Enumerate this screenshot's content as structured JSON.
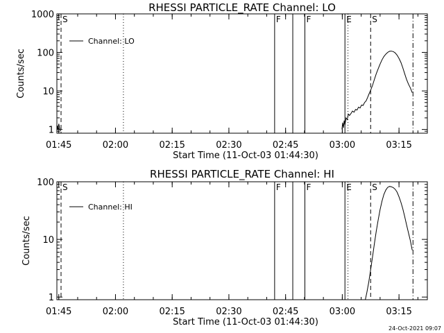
{
  "chart_data": [
    {
      "type": "line",
      "title": "RHESSI PARTICLE_RATE Channel: LO",
      "xlabel": "Start Time (11-Oct-03 01:44:30)",
      "ylabel": "Counts/sec",
      "yscale": "log",
      "xlim_min": [
        0,
        98
      ],
      "ylim": [
        0.8,
        1000
      ],
      "xticks": [
        {
          "min": 0.5,
          "label": "01:45"
        },
        {
          "min": 15.5,
          "label": "02:00"
        },
        {
          "min": 30.5,
          "label": "02:15"
        },
        {
          "min": 45.5,
          "label": "02:30"
        },
        {
          "min": 60.5,
          "label": "02:45"
        },
        {
          "min": 75.5,
          "label": "03:00"
        },
        {
          "min": 90.5,
          "label": "03:15"
        }
      ],
      "yticks": [
        {
          "value": 1,
          "label": "1"
        },
        {
          "value": 10,
          "label": "10"
        },
        {
          "value": 100,
          "label": "100"
        },
        {
          "value": 1000,
          "label": "1000"
        }
      ],
      "legend": {
        "label": "Channel: LO",
        "position": "top-left"
      },
      "flag_lines": [
        {
          "min": 1.1,
          "style": "dashed",
          "flag": "S"
        },
        {
          "min": 17.6,
          "style": "dotted",
          "flag": ""
        },
        {
          "min": 57.6,
          "style": "solid",
          "flag": "F"
        },
        {
          "min": 62.4,
          "style": "solid",
          "flag": ""
        },
        {
          "min": 65.6,
          "style": "solid",
          "flag": "F"
        },
        {
          "min": 76.2,
          "style": "solid",
          "flag": "E"
        },
        {
          "min": 77.0,
          "style": "dotted",
          "flag": ""
        },
        {
          "min": 83.0,
          "style": "dashed",
          "flag": "S"
        },
        {
          "min": 94.2,
          "style": "dashdot",
          "flag": ""
        }
      ],
      "series": [
        {
          "name": "Channel: LO",
          "x": [
            0.05,
            0.15,
            0.3,
            0.5,
            0.8,
            1.05
          ],
          "y": [
            1.0,
            1.25,
            1.0,
            1.4,
            1.0,
            0.9
          ],
          "style": "noise"
        },
        {
          "name": "Channel: LO",
          "x": [
            75.4,
            75.6,
            75.8,
            76.0,
            76.2,
            76.5,
            76.8,
            77.1,
            77.4,
            77.8,
            78.2,
            78.6,
            79.0,
            79.4,
            79.8,
            80.2,
            80.6,
            81.0,
            81.4,
            81.8,
            82.2,
            82.6,
            83.0,
            83.5,
            84.0,
            84.5,
            85.0,
            85.5,
            86.0,
            86.5,
            87.0,
            87.5,
            88.0,
            88.5,
            89.0,
            89.5,
            90.0,
            90.5,
            91.0,
            91.5,
            92.0,
            92.5,
            93.0,
            93.5,
            94.0
          ],
          "y": [
            1.0,
            1.5,
            1.1,
            1.7,
            1.3,
            2.0,
            1.8,
            2.5,
            2.3,
            2.6,
            3.0,
            2.8,
            3.3,
            3.2,
            3.8,
            3.6,
            4.3,
            4.2,
            5.0,
            5.5,
            6.8,
            8.5,
            10.5,
            14,
            20,
            28,
            38,
            50,
            64,
            78,
            90,
            100,
            107,
            108,
            105,
            97,
            85,
            70,
            55,
            40,
            28,
            20,
            15,
            12,
            9
          ]
        }
      ]
    },
    {
      "type": "line",
      "title": "RHESSI PARTICLE_RATE Channel: HI",
      "xlabel": "Start Time (11-Oct-03 01:44:30)",
      "ylabel": "Counts/sec",
      "yscale": "log",
      "xlim_min": [
        0,
        98
      ],
      "ylim": [
        0.9,
        100
      ],
      "xticks": [
        {
          "min": 0.5,
          "label": "01:45"
        },
        {
          "min": 15.5,
          "label": "02:00"
        },
        {
          "min": 30.5,
          "label": "02:15"
        },
        {
          "min": 45.5,
          "label": "02:30"
        },
        {
          "min": 60.5,
          "label": "02:45"
        },
        {
          "min": 75.5,
          "label": "03:00"
        },
        {
          "min": 90.5,
          "label": "03:15"
        }
      ],
      "yticks": [
        {
          "value": 1,
          "label": "1"
        },
        {
          "value": 10,
          "label": "10"
        },
        {
          "value": 100,
          "label": "100"
        }
      ],
      "legend": {
        "label": "Channel: HI",
        "position": "top-left"
      },
      "flag_lines": [
        {
          "min": 1.1,
          "style": "dashed",
          "flag": "S"
        },
        {
          "min": 17.6,
          "style": "dotted",
          "flag": ""
        },
        {
          "min": 57.6,
          "style": "solid",
          "flag": "F"
        },
        {
          "min": 62.4,
          "style": "solid",
          "flag": ""
        },
        {
          "min": 65.6,
          "style": "solid",
          "flag": "F"
        },
        {
          "min": 76.2,
          "style": "solid",
          "flag": "E"
        },
        {
          "min": 77.0,
          "style": "dotted",
          "flag": ""
        },
        {
          "min": 83.0,
          "style": "dashed",
          "flag": "S"
        },
        {
          "min": 94.2,
          "style": "dashdot",
          "flag": ""
        }
      ],
      "series": [
        {
          "name": "Channel: HI",
          "x": [
            81.6,
            82.0,
            82.5,
            83.0,
            83.5,
            84.0,
            84.5,
            85.0,
            85.5,
            86.0,
            86.5,
            87.0,
            87.5,
            88.0,
            88.5,
            89.0,
            89.5,
            90.0,
            90.5,
            91.0,
            91.5,
            92.0,
            92.5,
            93.0,
            93.5,
            94.0
          ],
          "y": [
            0.9,
            1.2,
            1.8,
            3.0,
            5.0,
            8.5,
            14,
            22,
            33,
            46,
            60,
            72,
            80,
            83,
            82,
            79,
            74,
            66,
            55,
            44,
            34,
            25,
            18,
            13,
            9.5,
            6.5
          ]
        }
      ]
    }
  ],
  "footer": {
    "timestamp": "24-Oct-2021 09:07"
  }
}
